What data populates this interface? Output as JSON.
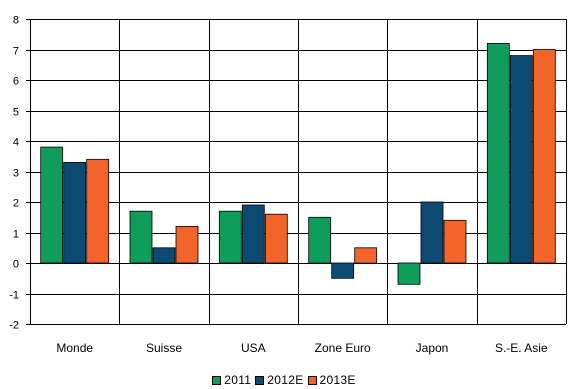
{
  "chart_data": {
    "type": "bar",
    "title": "",
    "xlabel": "",
    "ylabel": "",
    "ylim": [
      -2,
      8
    ],
    "yticks": [
      8,
      7,
      6,
      5,
      4,
      3,
      2,
      1,
      0,
      -1,
      -2
    ],
    "categories": [
      "Monde",
      "Suisse",
      "USA",
      "Zone Euro",
      "Japon",
      "S.-E. Asie"
    ],
    "series": [
      {
        "name": "2011",
        "color": "#109c5a",
        "values": [
          3.8,
          1.7,
          1.7,
          1.5,
          -0.7,
          7.2
        ]
      },
      {
        "name": "2012E",
        "color": "#0d4a73",
        "values": [
          3.3,
          0.5,
          1.9,
          -0.5,
          2.0,
          6.8
        ]
      },
      {
        "name": "2013E",
        "color": "#f2642a",
        "values": [
          3.4,
          1.2,
          1.6,
          0.5,
          1.4,
          7.0
        ]
      }
    ],
    "grid": true,
    "legend": "bottom"
  }
}
